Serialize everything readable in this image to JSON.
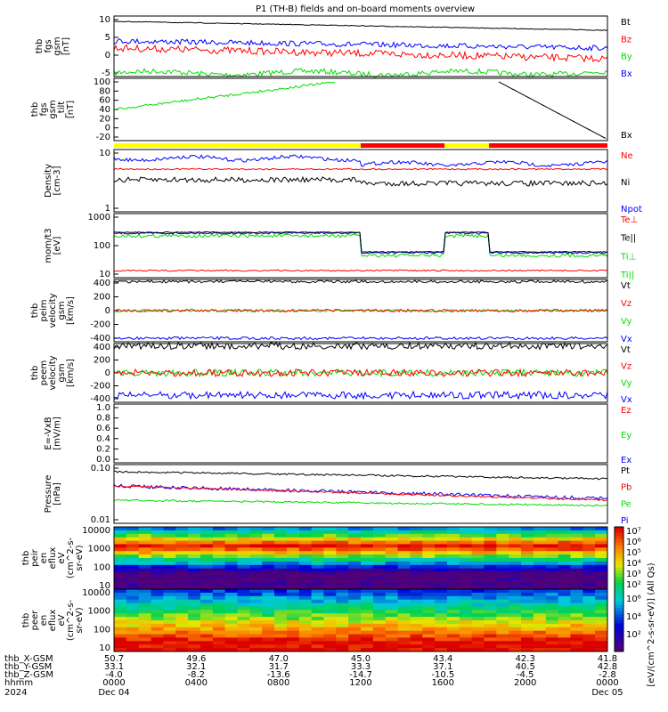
{
  "title": "P1 (TH-B) fields and on-board moments overview",
  "colors": {
    "black": "#000000",
    "red": "#ff0000",
    "green": "#00dd00",
    "blue": "#0000ff",
    "yellow": "#ffff00"
  },
  "panels": [
    {
      "id": "fgs",
      "ylabel": [
        "thb",
        "fgs",
        "gsm",
        "[nT]"
      ],
      "ticks": [
        "10",
        "5",
        "0",
        "-5"
      ],
      "legend": [
        {
          "t": "Bt",
          "c": "black"
        },
        {
          "t": "Bz",
          "c": "red"
        },
        {
          "t": "By",
          "c": "green"
        },
        {
          "t": "Bx",
          "c": "blue"
        }
      ]
    },
    {
      "id": "fgs_dsl",
      "ylabel": [
        "thb",
        "fgs",
        "gsm",
        "_tilt",
        "[nT]"
      ],
      "ticks": [
        "100",
        "80",
        "60",
        "40",
        "20",
        "0",
        "-20"
      ],
      "legend": [
        {
          "t": "Bx",
          "c": "black"
        }
      ]
    },
    {
      "id": "density",
      "ylabel": [
        "Density",
        "[cm-3]"
      ],
      "ticks": [
        "10",
        "1"
      ],
      "legend": [
        {
          "t": "Ne",
          "c": "red"
        },
        {
          "t": "Ni",
          "c": "black"
        },
        {
          "t": "Npot",
          "c": "blue"
        }
      ]
    },
    {
      "id": "temp",
      "ylabel": [
        "mom/t3",
        "[eV]"
      ],
      "ticks": [
        "1000",
        "100",
        "10"
      ],
      "legend": [
        {
          "t": "Te⊥",
          "c": "red"
        },
        {
          "t": "Te||",
          "c": "black"
        },
        {
          "t": "Ti⊥",
          "c": "green"
        },
        {
          "t": "Ti||",
          "c": "green"
        }
      ]
    },
    {
      "id": "peim",
      "ylabel": [
        "thb",
        "peim",
        "velocity",
        "gsm",
        "[km/s]"
      ],
      "ticks": [
        "400",
        "200",
        "0",
        "-200",
        "-400"
      ],
      "legend": [
        {
          "t": "Vt",
          "c": "black"
        },
        {
          "t": "Vz",
          "c": "red"
        },
        {
          "t": "Vy",
          "c": "green"
        },
        {
          "t": "Vx",
          "c": "blue"
        }
      ]
    },
    {
      "id": "peem",
      "ylabel": [
        "thb",
        "peem",
        "velocity",
        "gsm",
        "[km/s]"
      ],
      "ticks": [
        "400",
        "200",
        "0",
        "-200",
        "-400"
      ],
      "legend": [
        {
          "t": "Vt",
          "c": "black"
        },
        {
          "t": "Vz",
          "c": "red"
        },
        {
          "t": "Vy",
          "c": "green"
        },
        {
          "t": "Vx",
          "c": "blue"
        }
      ]
    },
    {
      "id": "efield",
      "ylabel": [
        "E=-VxB",
        "[mV/m]"
      ],
      "ticks": [
        "1.0",
        "0.8",
        "0.6",
        "0.4",
        "0.2",
        "0.0"
      ],
      "legend": [
        {
          "t": "Ez",
          "c": "red"
        },
        {
          "t": "Ey",
          "c": "green"
        },
        {
          "t": "Ex",
          "c": "blue"
        }
      ]
    },
    {
      "id": "pressure",
      "ylabel": [
        "Pressure",
        "[nPa]"
      ],
      "ticks": [
        "0.10",
        "0.01"
      ],
      "legend": [
        {
          "t": "Pt",
          "c": "black"
        },
        {
          "t": "Pb",
          "c": "red"
        },
        {
          "t": "Pe",
          "c": "green"
        },
        {
          "t": "Pi",
          "c": "blue"
        }
      ]
    },
    {
      "id": "peir",
      "ylabel": [
        "thb",
        "peir",
        "en",
        "eflux",
        "eV",
        "(cm^2-s-",
        "sr-eV)"
      ],
      "ticks": [
        "10000",
        "1000",
        "100",
        "10"
      ]
    },
    {
      "id": "peer",
      "ylabel": [
        "thb",
        "peer",
        "en",
        "eflux",
        "eV",
        "(cm^2-s-",
        "sr-eV)"
      ],
      "ticks": [
        "10000",
        "1000",
        "100",
        "10"
      ]
    }
  ],
  "colorbar": {
    "label": "[eV/(cm^2-s-sr-eV)] (All Qs)",
    "ticks_top": [
      "10⁷",
      "10⁶",
      "10⁵",
      "10⁴",
      "10³",
      "10²"
    ],
    "ticks_bot": [
      "10⁶",
      "10⁴",
      "10²"
    ]
  },
  "x_axis": {
    "rows": [
      {
        "label": "thb_X-GSM",
        "values": [
          "50.7",
          "49.6",
          "47.0",
          "45.0",
          "43.4",
          "42.3",
          "41.8"
        ]
      },
      {
        "label": "thb_Y-GSM",
        "values": [
          "33.1",
          "32.1",
          "31.7",
          "33.3",
          "37.1",
          "40.5",
          "42.8"
        ]
      },
      {
        "label": "thb_Z-GSM",
        "values": [
          "-4.0",
          "-8.2",
          "-13.6",
          "-14.7",
          "-10.5",
          "-4.5",
          "-2.8"
        ]
      },
      {
        "label": "hhmm",
        "values": [
          "0000",
          "0400",
          "0800",
          "1200",
          "1600",
          "2000",
          "0000"
        ]
      }
    ],
    "year": "2024",
    "date_start": "Dec 04",
    "date_end": "Dec 05"
  },
  "chart_data": {
    "type": "line",
    "title": "P1 (TH-B) fields and on-board moments overview",
    "x": [
      "0000",
      "0400",
      "0800",
      "1200",
      "1600",
      "2000",
      "0000"
    ],
    "series": [
      {
        "name": "Bt",
        "values": [
          9,
          9,
          8.5,
          8,
          7.5,
          7,
          6.5
        ]
      },
      {
        "name": "Bz",
        "values": [
          2,
          3,
          2,
          1,
          0,
          -1,
          -2
        ]
      },
      {
        "name": "By",
        "values": [
          -5,
          -4,
          -4,
          -3,
          -4,
          -5,
          -5
        ]
      },
      {
        "name": "Bx",
        "values": [
          5,
          4,
          4,
          3,
          5,
          5,
          5
        ]
      },
      {
        "name": "Ni",
        "values": [
          3,
          3,
          3,
          2.5,
          2.5,
          2.5,
          2.5
        ]
      },
      {
        "name": "Vx",
        "values": [
          -400,
          -400,
          -400,
          -400,
          -400,
          -400,
          -400
        ]
      }
    ]
  }
}
